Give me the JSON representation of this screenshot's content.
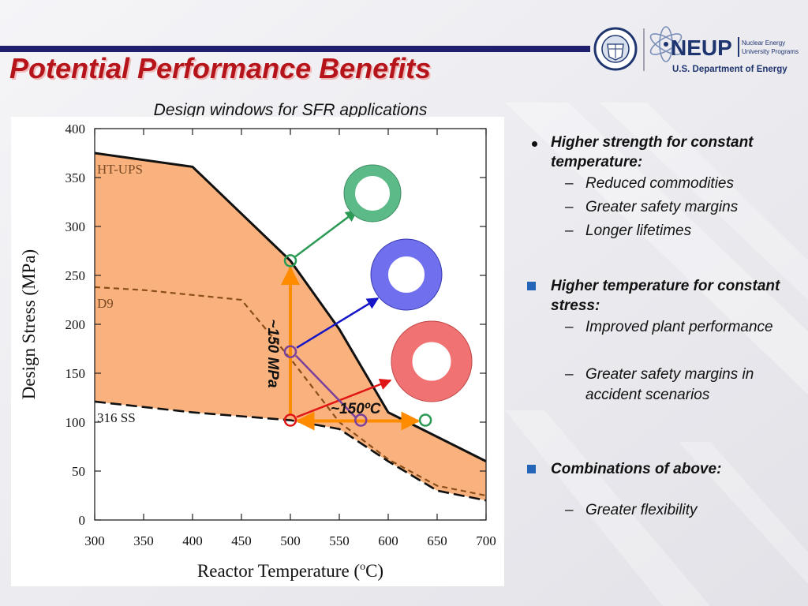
{
  "slide": {
    "title": "Potential Performance Benefits",
    "subtitle": "Design windows for SFR applications"
  },
  "logos": {
    "seal_text": "DEPARTMENT OF ENERGY · UNITED STATES OF AMERICA",
    "neup_text": "NEUP",
    "neup_line1": "Nuclear Energy",
    "neup_line2": "University Programs",
    "doe_text": "U.S. Department of Energy"
  },
  "bullets": [
    {
      "marker": "dot",
      "text": "Higher strength for constant temperature:",
      "subs": [
        "Reduced commodities",
        "Greater safety margins",
        "Longer lifetimes"
      ]
    },
    {
      "marker": "square",
      "text": "Higher temperature for constant stress:",
      "subs": [
        "Improved plant performance",
        "Greater safety margins in accident scenarios"
      ]
    },
    {
      "marker": "square",
      "text": "Combinations of above:",
      "subs": [
        "Greater flexibility"
      ]
    }
  ],
  "colors": {
    "title": "#b5141b",
    "band_fill": "#f9b27d",
    "arrow_orange": "#ff8c00",
    "green": "#2a9a55",
    "blue": "#1515c8",
    "red": "#e01515",
    "purple": "#7b3f9c",
    "ring_green": "#5cba88",
    "ring_blue": "#7070ee",
    "ring_red": "#f07272"
  },
  "chart_data": {
    "type": "line",
    "xlabel": "Reactor Temperature (oC)",
    "ylabel": "Design Stress (MPa)",
    "xlim": [
      300,
      700
    ],
    "ylim": [
      0,
      400
    ],
    "xticks": [
      300,
      350,
      400,
      450,
      500,
      550,
      600,
      650,
      700
    ],
    "yticks": [
      0,
      50,
      100,
      150,
      200,
      250,
      300,
      350,
      400
    ],
    "grid": false,
    "series": [
      {
        "name": "HT-UPS",
        "style": "solid",
        "x": [
          300,
          400,
          500,
          550,
          600,
          700
        ],
        "y": [
          375,
          361,
          265,
          195,
          110,
          60
        ]
      },
      {
        "name": "D9",
        "style": "dashed",
        "x": [
          300,
          350,
          450,
          500,
          550,
          600,
          650,
          700
        ],
        "y": [
          238,
          235,
          225,
          165,
          100,
          62,
          35,
          25
        ]
      },
      {
        "name": "316 SS",
        "style": "dashed",
        "x": [
          300,
          400,
          500,
          550,
          600,
          650,
          700
        ],
        "y": [
          121,
          110,
          102,
          93,
          60,
          30,
          20
        ]
      }
    ],
    "annotations": {
      "vertical_label": "~150 MPa",
      "horizontal_label": "~150ºC",
      "base_point": [
        500,
        102
      ],
      "up_point": [
        500,
        265
      ],
      "mid_point": [
        500,
        172
      ],
      "right_point": [
        638,
        102
      ],
      "diag_point": [
        572,
        102
      ]
    }
  }
}
